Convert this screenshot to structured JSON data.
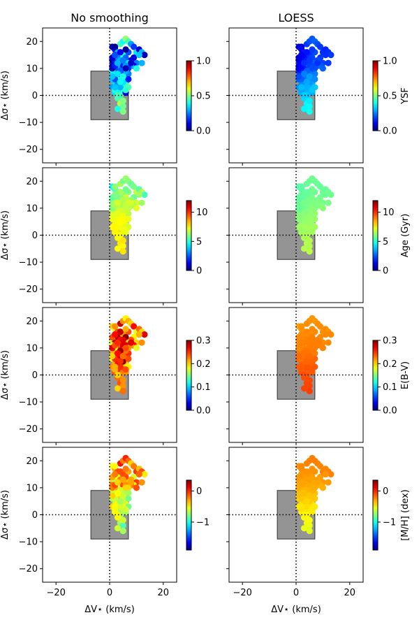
{
  "chart_data": {
    "type": "scatter",
    "column_titles": [
      "No smoothing",
      "LOESS"
    ],
    "xlabel": "ΔV⋆ (km/s)",
    "ylabel": "Δσ⋆ (km/s)",
    "xlim": [
      -25,
      25
    ],
    "ylim": [
      -25,
      25
    ],
    "xticks": [
      -20,
      0,
      20
    ],
    "yticks": [
      -20,
      -10,
      0,
      10,
      20
    ],
    "reference_lines": {
      "x": 0,
      "y": 0,
      "style": "dotted"
    },
    "box": {
      "x0": -7,
      "x1": 7,
      "y0": -9,
      "y1": 9,
      "color": "#949494"
    },
    "rows": [
      {
        "name": "YSF",
        "colorbar_label": "YSF",
        "vmin": 0,
        "vmax": 1,
        "ticks": [
          0.0,
          0.5,
          1.0
        ],
        "tick_labels": [
          "0.0",
          "0.5",
          "1.0"
        ]
      },
      {
        "name": "Age",
        "colorbar_label": "Age (Gyr)",
        "vmin": 0,
        "vmax": 12,
        "ticks": [
          0,
          5,
          10
        ],
        "tick_labels": [
          "0",
          "5",
          "10"
        ]
      },
      {
        "name": "E(B-V)",
        "colorbar_label": "E(B-V)",
        "vmin": 0,
        "vmax": 0.3,
        "ticks": [
          0.0,
          0.1,
          0.2,
          0.3
        ],
        "tick_labels": [
          "0.0",
          "0.1",
          "0.2",
          "0.3"
        ]
      },
      {
        "name": "[M/H]",
        "colorbar_label": "[M/H] (dex)",
        "vmin": -1.9,
        "vmax": 0.35,
        "ticks": [
          -1,
          0
        ],
        "tick_labels": [
          "−1",
          "0"
        ]
      }
    ],
    "points": {
      "x": [
        1,
        2,
        3,
        4,
        5,
        6,
        7,
        8,
        9,
        10,
        11,
        12,
        13,
        2,
        3,
        5,
        7,
        9,
        11,
        1,
        2,
        4,
        6,
        8,
        10,
        12,
        1,
        3,
        5,
        7,
        9,
        2,
        4,
        6,
        8,
        10,
        1,
        3,
        5,
        7,
        2,
        4,
        6,
        1,
        3,
        5,
        2,
        4,
        6,
        1,
        3,
        5,
        7,
        2,
        4,
        6,
        3,
        5,
        4,
        5,
        3,
        5,
        1,
        2,
        3,
        4,
        5,
        6,
        7,
        8,
        2,
        4,
        6,
        1,
        3,
        5,
        7,
        2,
        4,
        6,
        3,
        5,
        1,
        2,
        4,
        6,
        3,
        5,
        2,
        4,
        6,
        3,
        5,
        4,
        2,
        6
      ],
      "y": [
        18,
        17,
        16,
        19,
        20,
        21,
        20,
        19,
        18,
        16,
        17,
        16,
        15,
        15,
        14,
        15,
        16,
        14,
        15,
        13,
        12,
        13,
        14,
        13,
        12,
        12,
        11,
        10,
        11,
        12,
        11,
        10,
        9,
        10,
        11,
        10,
        9,
        8,
        9,
        8,
        7,
        7,
        6,
        6,
        5,
        5,
        4,
        3,
        4,
        3,
        2,
        2,
        3,
        1,
        0,
        1,
        -1,
        -2,
        -3,
        -4,
        -5,
        -6,
        10,
        11,
        12,
        9,
        13,
        11,
        10,
        12,
        6,
        8,
        9,
        7,
        4,
        5,
        6,
        2,
        3,
        1,
        0,
        -2,
        14,
        15,
        16,
        17,
        12,
        13,
        18,
        9,
        10,
        8,
        7,
        5,
        3,
        2
      ],
      "values": {
        "No smoothing": {
          "YSF": [
            0.05,
            0.12,
            0.3,
            0.45,
            0.38,
            0.52,
            0.45,
            0.28,
            0.18,
            0.35,
            0.08,
            0.3,
            0.06,
            0.1,
            0.25,
            0.4,
            0.2,
            0.1,
            0.32,
            0.0,
            0.15,
            0.3,
            0.22,
            0.08,
            0.25,
            0.3,
            0.05,
            0.28,
            0.15,
            0.35,
            0.1,
            0.2,
            0.35,
            0.12,
            0.3,
            0.4,
            0.38,
            0.2,
            0.42,
            0.25,
            0.45,
            0.4,
            0.3,
            0.32,
            0.38,
            0.45,
            0.35,
            0.4,
            0.42,
            0.28,
            0.38,
            0.4,
            0.45,
            0.35,
            0.42,
            0.48,
            0.45,
            0.5,
            0.55,
            0.48,
            0.4,
            0.5,
            0.05,
            0.15,
            0.3,
            0.12,
            0.22,
            0.28,
            0.18,
            0.08,
            0.2,
            0.1,
            0.3,
            0.32,
            0.25,
            0.35,
            0.15,
            0.4,
            0.3,
            0.1,
            0.45,
            0.5,
            0.08,
            0.2,
            0.12,
            0.02,
            0.3,
            0.25,
            0.03,
            0.22,
            0.05,
            0.35,
            0.4,
            0.38,
            0.32,
            0.42
          ],
          "Age": [
            4.5,
            5.2,
            5.8,
            6.5,
            5.9,
            6.3,
            6.1,
            5.7,
            5.9,
            6.8,
            5.5,
            6.6,
            5.3,
            5.4,
            5.8,
            6.2,
            6.0,
            5.7,
            6.4,
            5.9,
            6.5,
            6.1,
            6.8,
            6.3,
            7.0,
            6.4,
            6.2,
            6.8,
            6.5,
            7.1,
            6.4,
            6.8,
            6.2,
            7.0,
            6.5,
            7.2,
            6.9,
            7.3,
            7.0,
            6.7,
            7.2,
            7.5,
            7.1,
            7.4,
            7.2,
            7.3,
            7.6,
            7.4,
            7.1,
            7.5,
            7.8,
            7.2,
            7.0,
            7.6,
            7.4,
            7.2,
            7.6,
            7.5,
            7.7,
            7.6,
            7.5,
            7.8,
            6.0,
            6.5,
            6.9,
            7.1,
            6.3,
            6.8,
            6.7,
            7.0,
            7.3,
            7.5,
            7.0,
            7.2,
            7.4,
            7.5,
            7.3,
            7.6,
            7.4,
            7.2,
            7.5,
            7.8,
            5.6,
            6.0,
            6.4,
            5.8,
            7.0,
            6.6,
            6.2,
            7.0,
            6.8,
            7.2,
            7.4,
            7.5,
            7.6,
            7.3
          ],
          "E(B-V)": [
            0.2,
            0.18,
            0.24,
            0.28,
            0.22,
            0.19,
            0.21,
            0.2,
            0.26,
            0.18,
            0.23,
            0.2,
            0.27,
            0.25,
            0.29,
            0.22,
            0.24,
            0.19,
            0.21,
            0.17,
            0.28,
            0.26,
            0.3,
            0.24,
            0.2,
            0.22,
            0.18,
            0.24,
            0.27,
            0.2,
            0.26,
            0.19,
            0.28,
            0.25,
            0.22,
            0.18,
            0.21,
            0.23,
            0.2,
            0.25,
            0.24,
            0.27,
            0.22,
            0.19,
            0.23,
            0.26,
            0.21,
            0.24,
            0.2,
            0.22,
            0.25,
            0.23,
            0.19,
            0.24,
            0.22,
            0.26,
            0.23,
            0.21,
            0.24,
            0.22,
            0.2,
            0.23,
            0.27,
            0.24,
            0.29,
            0.26,
            0.3,
            0.28,
            0.22,
            0.27,
            0.25,
            0.28,
            0.23,
            0.2,
            0.26,
            0.3,
            0.24,
            0.21,
            0.25,
            0.22,
            0.2,
            0.22,
            0.24,
            0.26,
            0.28,
            0.21,
            0.25,
            0.27,
            0.22,
            0.29,
            0.24,
            0.26,
            0.23,
            0.25,
            0.21,
            0.24
          ],
          "[M/H]": [
            -0.5,
            -0.3,
            -0.1,
            0.05,
            -0.2,
            0.0,
            -0.15,
            -0.4,
            -0.2,
            -0.05,
            -0.35,
            -0.1,
            -0.45,
            -0.25,
            -0.5,
            -0.1,
            -0.3,
            -0.6,
            -0.15,
            -0.4,
            -0.7,
            -0.2,
            -0.1,
            -0.3,
            -0.05,
            -0.25,
            -0.2,
            -0.6,
            -0.1,
            -0.35,
            -0.5,
            -0.3,
            -0.8,
            -0.4,
            -0.2,
            -0.1,
            -0.6,
            -0.9,
            -0.5,
            -0.7,
            -0.8,
            -0.4,
            -0.6,
            -0.7,
            -1.0,
            -0.5,
            -0.6,
            -0.8,
            -0.5,
            -0.4,
            -0.7,
            -0.6,
            -0.8,
            -0.5,
            -0.7,
            -0.6,
            -0.5,
            -0.8,
            -0.7,
            -0.9,
            -0.6,
            -0.7,
            -0.2,
            -0.1,
            -0.3,
            -0.5,
            -0.15,
            -0.25,
            -0.4,
            -0.3,
            -0.6,
            -0.5,
            -0.7,
            -0.4,
            -0.5,
            -0.6,
            -0.8,
            -0.5,
            -0.6,
            -0.7,
            -0.5,
            -0.6,
            -0.3,
            -0.2,
            -0.1,
            -0.2,
            -0.4,
            -0.3,
            -0.5,
            -0.6,
            -0.4,
            -0.5,
            -0.6,
            -0.7,
            -0.5,
            -0.6
          ]
        },
        "LOESS": {
          "YSF": [
            0.1,
            0.12,
            0.15,
            0.18,
            0.2,
            0.21,
            0.22,
            0.2,
            0.18,
            0.17,
            0.16,
            0.17,
            0.18,
            0.11,
            0.13,
            0.17,
            0.2,
            0.18,
            0.17,
            0.1,
            0.12,
            0.15,
            0.19,
            0.2,
            0.19,
            0.18,
            0.12,
            0.15,
            0.19,
            0.22,
            0.21,
            0.14,
            0.18,
            0.22,
            0.23,
            0.22,
            0.16,
            0.2,
            0.24,
            0.25,
            0.2,
            0.24,
            0.26,
            0.22,
            0.26,
            0.28,
            0.26,
            0.28,
            0.29,
            0.27,
            0.3,
            0.31,
            0.32,
            0.3,
            0.32,
            0.33,
            0.34,
            0.36,
            0.37,
            0.38,
            0.37,
            0.39,
            0.12,
            0.13,
            0.15,
            0.2,
            0.16,
            0.19,
            0.2,
            0.17,
            0.22,
            0.24,
            0.24,
            0.2,
            0.26,
            0.27,
            0.26,
            0.29,
            0.3,
            0.3,
            0.33,
            0.36,
            0.1,
            0.11,
            0.14,
            0.18,
            0.17,
            0.18,
            0.1,
            0.22,
            0.2,
            0.25,
            0.28,
            0.29,
            0.31,
            0.32
          ],
          "Age": [
            5.4,
            5.5,
            5.6,
            5.7,
            5.8,
            5.8,
            5.8,
            5.7,
            5.7,
            5.8,
            5.7,
            5.8,
            5.8,
            5.5,
            5.6,
            5.7,
            5.8,
            5.8,
            5.8,
            5.6,
            5.7,
            5.8,
            5.9,
            5.9,
            5.9,
            5.9,
            5.7,
            5.8,
            5.9,
            6.0,
            6.0,
            5.8,
            5.9,
            6.0,
            6.1,
            6.1,
            5.9,
            6.0,
            6.1,
            6.2,
            6.1,
            6.2,
            6.2,
            6.1,
            6.2,
            6.3,
            6.2,
            6.3,
            6.3,
            6.3,
            6.4,
            6.4,
            6.4,
            6.4,
            6.5,
            6.5,
            6.5,
            6.6,
            6.6,
            6.6,
            6.6,
            6.7,
            5.7,
            5.8,
            5.8,
            6.0,
            5.9,
            6.0,
            6.0,
            6.0,
            6.1,
            6.2,
            6.2,
            6.1,
            6.3,
            6.3,
            6.3,
            6.3,
            6.4,
            6.4,
            6.5,
            6.6,
            5.6,
            5.7,
            5.7,
            5.8,
            5.9,
            5.9,
            5.6,
            6.0,
            6.1,
            6.1,
            6.2,
            6.3,
            6.4,
            6.4
          ],
          "E(B-V)": [
            0.215,
            0.218,
            0.22,
            0.222,
            0.22,
            0.219,
            0.218,
            0.22,
            0.221,
            0.22,
            0.221,
            0.22,
            0.222,
            0.22,
            0.222,
            0.222,
            0.222,
            0.222,
            0.222,
            0.222,
            0.224,
            0.224,
            0.225,
            0.225,
            0.223,
            0.222,
            0.222,
            0.224,
            0.225,
            0.225,
            0.224,
            0.226,
            0.226,
            0.226,
            0.225,
            0.224,
            0.227,
            0.228,
            0.227,
            0.226,
            0.229,
            0.23,
            0.229,
            0.231,
            0.232,
            0.232,
            0.233,
            0.234,
            0.234,
            0.235,
            0.236,
            0.236,
            0.236,
            0.238,
            0.238,
            0.238,
            0.24,
            0.241,
            0.242,
            0.243,
            0.243,
            0.244,
            0.222,
            0.224,
            0.224,
            0.226,
            0.224,
            0.225,
            0.225,
            0.225,
            0.229,
            0.228,
            0.227,
            0.231,
            0.233,
            0.233,
            0.232,
            0.236,
            0.237,
            0.236,
            0.239,
            0.241,
            0.222,
            0.222,
            0.223,
            0.222,
            0.225,
            0.225,
            0.22,
            0.228,
            0.226,
            0.229,
            0.231,
            0.233,
            0.236,
            0.237
          ],
          "[M/H]": [
            -0.25,
            -0.24,
            -0.23,
            -0.22,
            -0.22,
            -0.21,
            -0.21,
            -0.22,
            -0.23,
            -0.22,
            -0.23,
            -0.22,
            -0.23,
            -0.27,
            -0.27,
            -0.26,
            -0.26,
            -0.27,
            -0.26,
            -0.29,
            -0.29,
            -0.28,
            -0.28,
            -0.28,
            -0.27,
            -0.27,
            -0.31,
            -0.31,
            -0.3,
            -0.3,
            -0.31,
            -0.33,
            -0.33,
            -0.33,
            -0.32,
            -0.32,
            -0.35,
            -0.36,
            -0.36,
            -0.36,
            -0.38,
            -0.38,
            -0.38,
            -0.39,
            -0.4,
            -0.4,
            -0.42,
            -0.43,
            -0.43,
            -0.44,
            -0.45,
            -0.45,
            -0.45,
            -0.47,
            -0.48,
            -0.48,
            -0.5,
            -0.51,
            -0.52,
            -0.53,
            -0.54,
            -0.55,
            -0.31,
            -0.3,
            -0.29,
            -0.33,
            -0.29,
            -0.3,
            -0.31,
            -0.3,
            -0.37,
            -0.34,
            -0.33,
            -0.36,
            -0.39,
            -0.38,
            -0.37,
            -0.43,
            -0.42,
            -0.45,
            -0.48,
            -0.51,
            -0.27,
            -0.26,
            -0.25,
            -0.25,
            -0.29,
            -0.28,
            -0.24,
            -0.33,
            -0.31,
            -0.35,
            -0.37,
            -0.4,
            -0.44,
            -0.45
          ]
        }
      }
    }
  }
}
